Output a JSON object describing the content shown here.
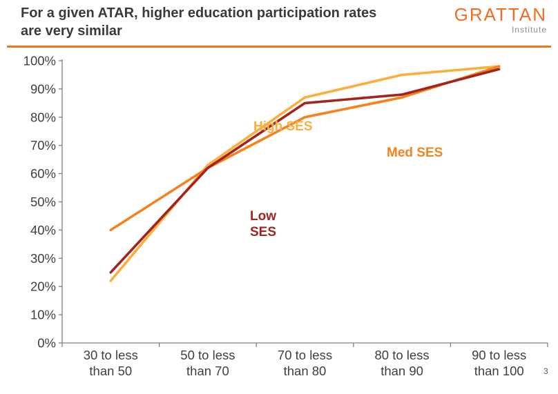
{
  "header": {
    "title_line1": "For a given ATAR, higher education participation rates",
    "title_line2": "are very similar",
    "logo": {
      "name": "GRATTAN",
      "subtitle": "Institute"
    },
    "divider_color": "#e87722"
  },
  "footnote": {
    "number": "3"
  },
  "chart_data": {
    "type": "line",
    "title": "For a given ATAR, higher education participation rates are very similar",
    "xlabel": "",
    "ylabel": "",
    "categories": [
      "30 to less than 50",
      "50 to less than 70",
      "70 to less than 80",
      "80 to less than 90",
      "90 to less than 100"
    ],
    "ylim": [
      0,
      100
    ],
    "ytick_step": 10,
    "ytick_labels": [
      "0%",
      "10%",
      "20%",
      "30%",
      "40%",
      "50%",
      "60%",
      "70%",
      "80%",
      "90%",
      "100%"
    ],
    "grid": "off",
    "legend_position": "inline-labels",
    "series": [
      {
        "name": "High SES",
        "color": "#fbae3c",
        "values": [
          22,
          63,
          87,
          95,
          98
        ]
      },
      {
        "name": "Med SES",
        "color": "#f5821f",
        "values": [
          40,
          62,
          80,
          87,
          98
        ]
      },
      {
        "name": "Low SES",
        "color": "#a3231e",
        "values": [
          25,
          62,
          85,
          88,
          97
        ]
      }
    ]
  }
}
